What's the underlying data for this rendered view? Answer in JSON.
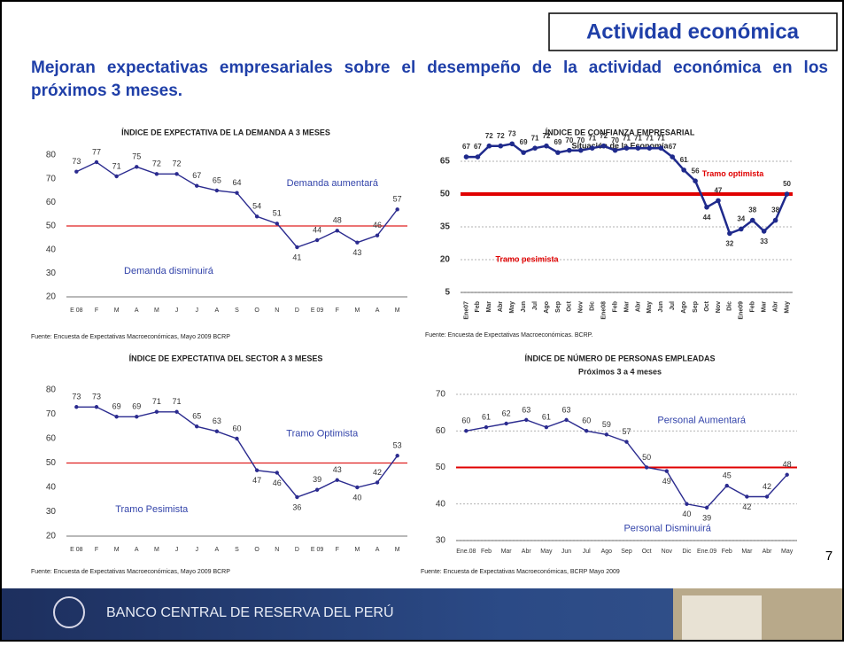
{
  "header": {
    "title": "Actividad económica",
    "subtitle": "Mejoran expectativas empresariales sobre el desempeño de la actividad económica en los próximos 3 meses."
  },
  "page_number": "7",
  "footer": {
    "bank_name": "BANCO CENTRAL DE RESERVA DEL PERÚ"
  },
  "chart_data": [
    {
      "type": "line",
      "title": "ÍNDICE DE EXPECTATIVA DE LA DEMANDA A 3 MESES",
      "categories": [
        "E 08",
        "F",
        "M",
        "A",
        "M",
        "J",
        "J",
        "A",
        "S",
        "O",
        "N",
        "D",
        "E 09",
        "F",
        "M",
        "A",
        "M"
      ],
      "values": [
        73,
        77,
        71,
        75,
        72,
        72,
        67,
        65,
        64,
        54,
        51,
        41,
        44,
        48,
        43,
        46,
        57
      ],
      "color": "#2b2b8f",
      "reference_line": 50,
      "reference_color": "#e02020",
      "ylim": [
        20,
        80
      ],
      "yticks": [
        20,
        30,
        40,
        50,
        60,
        70,
        80
      ],
      "grid": false,
      "annotations": [
        "Demanda aumentará",
        "Demanda disminuirá"
      ],
      "annotation_color": "#3344aa",
      "source": "Fuente: Encuesta de Expectativas Macroeconómicas, Mayo 2009 BCRP"
    },
    {
      "type": "line",
      "title": "ÍNDICE DE CONFIANZA EMPRESARIAL",
      "subtitle": "Situación de la Economía",
      "categories": [
        "Ene07",
        "Feb",
        "Mar",
        "Abr",
        "May",
        "Jun",
        "Jul",
        "Ago",
        "Sep",
        "Oct",
        "Nov",
        "Dic",
        "Ene08",
        "Feb",
        "Mar",
        "Abr",
        "May",
        "Jun",
        "Jul",
        "Ago",
        "Sep",
        "Oct",
        "Nov",
        "Dic",
        "Ene09",
        "Feb",
        "Mar",
        "Abr",
        "May"
      ],
      "values": [
        67,
        67,
        72,
        72,
        73,
        69,
        71,
        72,
        69,
        70,
        70,
        71,
        72,
        70,
        71,
        71,
        71,
        71,
        67,
        61,
        56,
        44,
        47,
        32,
        34,
        38,
        33,
        38,
        50
      ],
      "color": "#1f2a8c",
      "reference_line": 50,
      "reference_color": "#e00000",
      "ylim": [
        5,
        65
      ],
      "yticks": [
        5,
        20,
        35,
        50,
        65
      ],
      "grid": true,
      "annotations": [
        "Tramo optimista",
        "Tramo pesimista"
      ],
      "annotation_color": "#e00000",
      "source": "Fuente: Encuesta de Expectativas Macroeconómicas. BCRP."
    },
    {
      "type": "line",
      "title": "ÍNDICE DE EXPECTATIVA DEL SECTOR A 3 MESES",
      "categories": [
        "E 08",
        "F",
        "M",
        "A",
        "M",
        "J",
        "J",
        "A",
        "S",
        "O",
        "N",
        "D",
        "E 09",
        "F",
        "M",
        "A",
        "M"
      ],
      "values": [
        73,
        73,
        69,
        69,
        71,
        71,
        65,
        63,
        60,
        47,
        46,
        36,
        39,
        43,
        40,
        42,
        53
      ],
      "color": "#2b2b8f",
      "reference_line": 50,
      "reference_color": "#e02020",
      "ylim": [
        20,
        80
      ],
      "yticks": [
        20,
        30,
        40,
        50,
        60,
        70,
        80
      ],
      "grid": false,
      "annotations": [
        "Tramo Optimista",
        "Tramo Pesimista"
      ],
      "annotation_color": "#3344aa",
      "source": "Fuente: Encuesta de Expectativas Macroeconómicas, Mayo 2009 BCRP"
    },
    {
      "type": "line",
      "title": "ÍNDICE DE NÚMERO DE PERSONAS EMPLEADAS",
      "subtitle": "Próximos 3 a 4 meses",
      "categories": [
        "Ene.08",
        "Feb",
        "Mar",
        "Abr",
        "May",
        "Jun",
        "Jul",
        "Ago",
        "Sep",
        "Oct",
        "Nov",
        "Dic",
        "Ene.09",
        "Feb",
        "Mar",
        "Abr",
        "May"
      ],
      "values": [
        60,
        61,
        62,
        63,
        61,
        63,
        60,
        59,
        57,
        50,
        49,
        40,
        39,
        45,
        42,
        42,
        48
      ],
      "color": "#2b2b8f",
      "reference_line": 50,
      "reference_color": "#e00000",
      "ylim": [
        30,
        70
      ],
      "yticks": [
        30,
        40,
        50,
        60,
        70
      ],
      "grid": true,
      "annotations": [
        "Personal Aumentará",
        "Personal Disminuirá"
      ],
      "annotation_color": "#3344aa",
      "source": "Fuente: Encuesta de Expectativas Macroeconómicas, BCRP Mayo 2009"
    }
  ]
}
